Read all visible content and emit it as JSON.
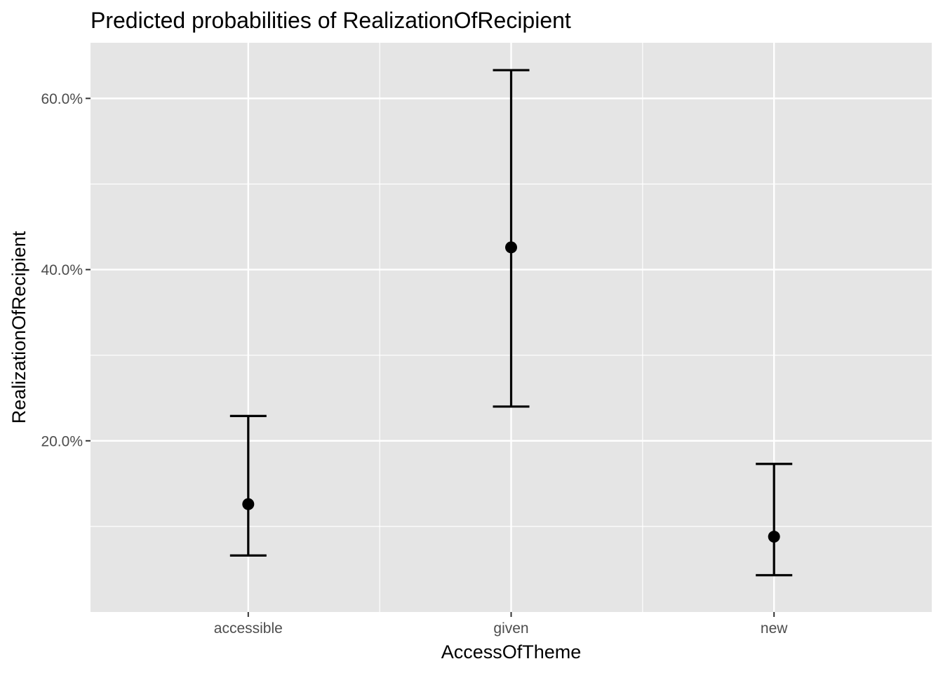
{
  "chart_data": {
    "type": "errorbar",
    "title": "Predicted probabilities of RealizationOfRecipient",
    "xlabel": "AccessOfTheme",
    "ylabel": "RealizationOfRecipient",
    "categories": [
      "accessible",
      "given",
      "new"
    ],
    "estimates": [
      0.126,
      0.426,
      0.088
    ],
    "lower": [
      0.066,
      0.24,
      0.043
    ],
    "upper": [
      0.229,
      0.633,
      0.173
    ],
    "ylim": [
      0.0,
      0.665
    ],
    "yticks": [
      0.2,
      0.4,
      0.6
    ],
    "ytick_labels": [
      "20.0%",
      "40.0%",
      "60.0%"
    ],
    "grid": true,
    "colors": {
      "panel": "#e5e5e5",
      "grid": "#ffffff",
      "marks": "#000000",
      "tick_text": "#4d4d4d",
      "tick_mark": "#333333"
    }
  }
}
